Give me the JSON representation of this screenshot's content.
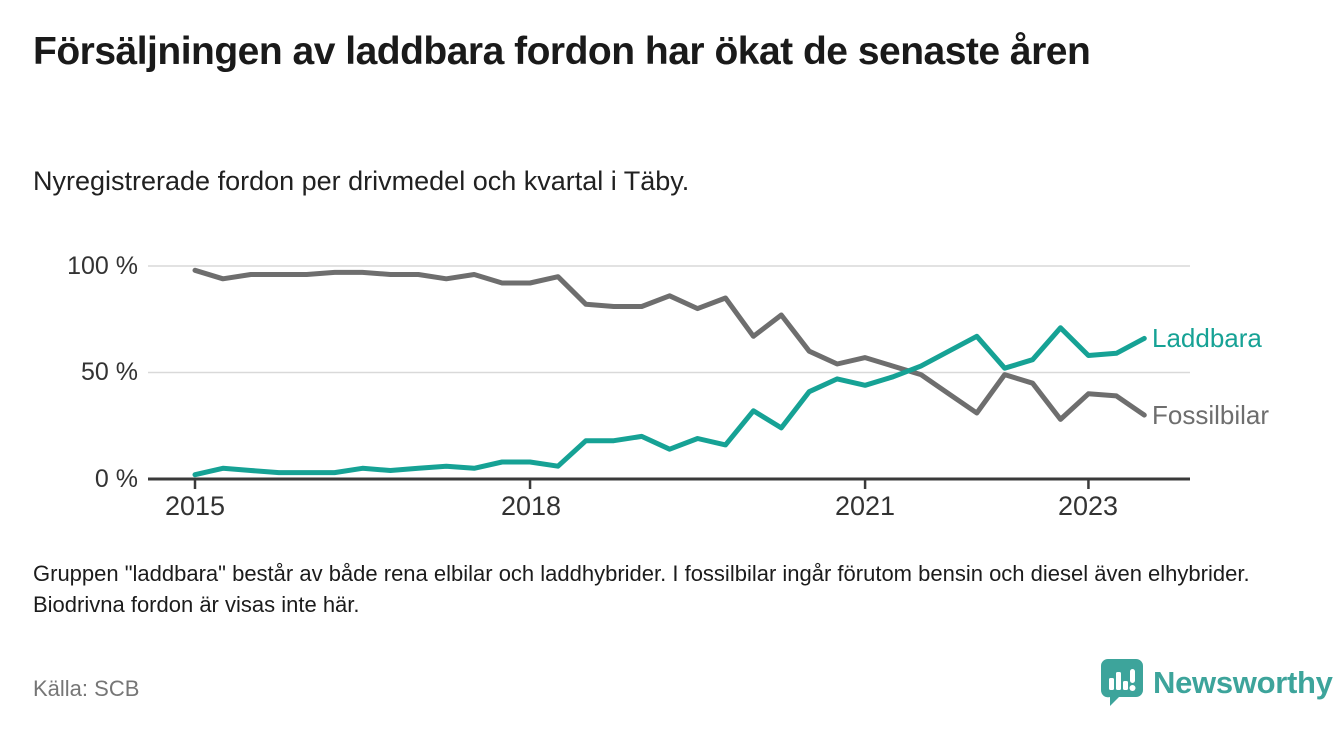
{
  "page": {
    "title": "Försäljningen av laddbara fordon har ökat de senaste åren",
    "subtitle": "Nyregistrerade fordon per drivmedel och kvartal i Täby.",
    "note": "Gruppen \"laddbara\" består av både rena elbilar och laddhybrider. I fossilbilar ingår förutom bensin och diesel även elhybrider. Biodrivna fordon är visas inte här.",
    "source": "Källa: SCB",
    "brand": {
      "name": "Newsworthy",
      "color": "#3da49b",
      "icon": "bar-chart-speech-bubble-icon"
    }
  },
  "chart_data": {
    "type": "line",
    "title": "Försäljningen av laddbara fordon har ökat de senaste åren",
    "subtitle": "Nyregistrerade fordon per drivmedel och kvartal i Täby.",
    "unit": "%",
    "ylim": [
      0,
      100
    ],
    "grid": "horizontal",
    "grid_color": "#d9d9d9",
    "axis_color": "#3a3a3a",
    "legend_position": "right-of-line-end",
    "x_quarters": [
      "2015 Q1",
      "2015 Q2",
      "2015 Q3",
      "2015 Q4",
      "2016 Q1",
      "2016 Q2",
      "2016 Q3",
      "2016 Q4",
      "2017 Q1",
      "2017 Q2",
      "2017 Q3",
      "2017 Q4",
      "2018 Q1",
      "2018 Q2",
      "2018 Q3",
      "2018 Q4",
      "2019 Q1",
      "2019 Q2",
      "2019 Q3",
      "2019 Q4",
      "2020 Q1",
      "2020 Q2",
      "2020 Q3",
      "2020 Q4",
      "2021 Q1",
      "2021 Q2",
      "2021 Q3",
      "2021 Q4",
      "2022 Q1",
      "2022 Q2",
      "2022 Q3",
      "2022 Q4",
      "2023 Q1",
      "2023 Q2",
      "2023 Q3"
    ],
    "y_ticks": [
      {
        "value": 0,
        "label": "0 %"
      },
      {
        "value": 50,
        "label": "50 %"
      },
      {
        "value": 100,
        "label": "100 %"
      }
    ],
    "x_ticks": [
      {
        "index": 0,
        "label": "2015"
      },
      {
        "index": 12,
        "label": "2018"
      },
      {
        "index": 24,
        "label": "2021"
      },
      {
        "index": 32,
        "label": "2023"
      }
    ],
    "series": [
      {
        "name": "Laddbara",
        "color": "#16a295",
        "values": [
          2,
          5,
          4,
          3,
          3,
          3,
          5,
          4,
          5,
          6,
          5,
          8,
          8,
          6,
          18,
          18,
          20,
          14,
          19,
          16,
          32,
          24,
          41,
          47,
          44,
          48,
          53,
          60,
          67,
          52,
          56,
          71,
          58,
          59,
          66
        ]
      },
      {
        "name": "Fossilbilar",
        "color": "#6e6e6e",
        "values": [
          98,
          94,
          96,
          96,
          96,
          97,
          97,
          96,
          96,
          94,
          96,
          92,
          92,
          95,
          82,
          81,
          81,
          86,
          80,
          85,
          67,
          77,
          60,
          54,
          57,
          53,
          49,
          40,
          31,
          49,
          45,
          28,
          40,
          39,
          30
        ]
      }
    ]
  }
}
